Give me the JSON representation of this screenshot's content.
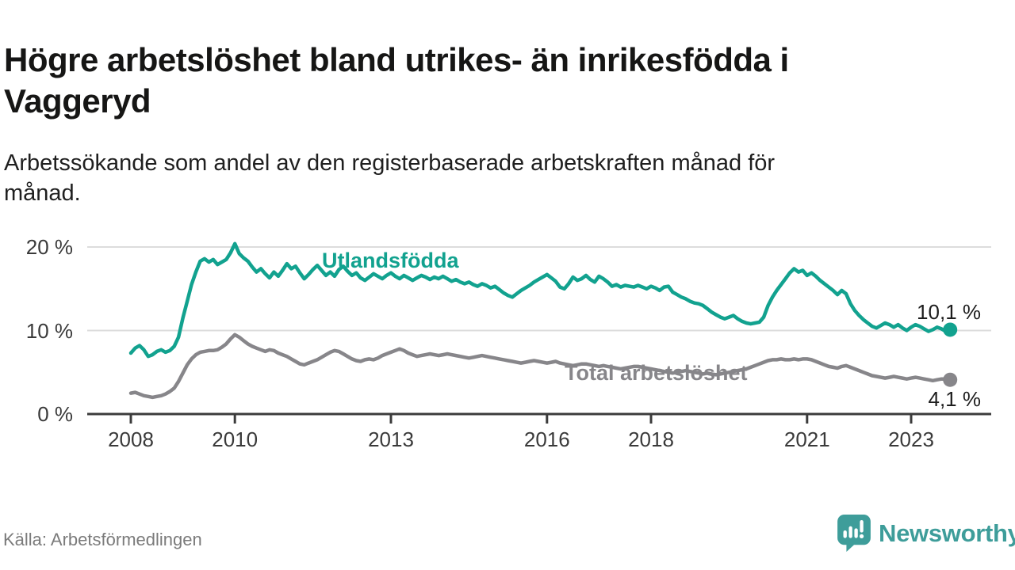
{
  "header": {
    "title": "Högre arbetslöshet bland utrikes- än inrikesfödda i Vaggeryd",
    "subtitle": "Arbetssökande som andel av den registerbaserade arbetskraften månad för månad."
  },
  "footer": {
    "source": "Källa: Arbetsförmedlingen",
    "brand_name": "Newsworthy",
    "brand_color": "#3e9d9a",
    "brand_icon": "newsworthy-speech-bubble-bar-chart-icon"
  },
  "chart_data": {
    "type": "line",
    "unit": "%",
    "x": {
      "start": "2008-01",
      "end": "2023-10",
      "frequency": "monthly"
    },
    "grid": true,
    "grid_color": "#dcdcdc",
    "axis_color": "#3b3b3b",
    "ylim": [
      0,
      21
    ],
    "y_axis": {
      "ticks": [
        {
          "value": 0,
          "label": "0 %"
        },
        {
          "value": 10,
          "label": "10 %"
        },
        {
          "value": 20,
          "label": "20 %"
        }
      ]
    },
    "x_axis": {
      "ticks": [
        {
          "year": 2008,
          "label": "2008"
        },
        {
          "year": 2010,
          "label": "2010"
        },
        {
          "year": 2013,
          "label": "2013"
        },
        {
          "year": 2016,
          "label": "2016"
        },
        {
          "year": 2018,
          "label": "2018"
        },
        {
          "year": 2021,
          "label": "2021"
        },
        {
          "year": 2023,
          "label": "2023"
        }
      ]
    },
    "series": [
      {
        "name": "Utlandsfödda",
        "color": "#12a28f",
        "end_value": 10.1,
        "end_label": "10,1 %",
        "values": [
          7.3,
          7.9,
          8.2,
          7.7,
          6.9,
          7.1,
          7.5,
          7.7,
          7.4,
          7.6,
          8.1,
          9.2,
          11.5,
          13.5,
          15.5,
          17.0,
          18.3,
          18.6,
          18.2,
          18.5,
          17.9,
          18.2,
          18.5,
          19.3,
          20.4,
          19.2,
          18.7,
          18.3,
          17.6,
          17.0,
          17.4,
          16.8,
          16.3,
          17.0,
          16.5,
          17.2,
          18.0,
          17.4,
          17.7,
          16.9,
          16.2,
          16.7,
          17.3,
          17.8,
          17.2,
          16.6,
          17.0,
          16.5,
          17.3,
          17.7,
          17.1,
          16.6,
          16.9,
          16.3,
          16.0,
          16.4,
          16.8,
          16.5,
          16.2,
          16.6,
          16.9,
          16.5,
          16.2,
          16.6,
          16.3,
          16.0,
          16.3,
          16.6,
          16.4,
          16.1,
          16.4,
          16.2,
          16.5,
          16.2,
          15.9,
          16.1,
          15.8,
          15.6,
          15.8,
          15.5,
          15.3,
          15.6,
          15.4,
          15.1,
          15.3,
          14.9,
          14.5,
          14.2,
          14.0,
          14.4,
          14.8,
          15.1,
          15.4,
          15.8,
          16.1,
          16.4,
          16.7,
          16.3,
          15.9,
          15.2,
          15.0,
          15.6,
          16.4,
          16.0,
          16.2,
          16.6,
          16.1,
          15.8,
          16.5,
          16.2,
          15.8,
          15.3,
          15.5,
          15.2,
          15.4,
          15.3,
          15.2,
          15.4,
          15.2,
          15.0,
          15.3,
          15.1,
          14.8,
          15.2,
          15.3,
          14.6,
          14.3,
          14.0,
          13.8,
          13.5,
          13.3,
          13.2,
          13.0,
          12.6,
          12.2,
          11.9,
          11.6,
          11.4,
          11.6,
          11.8,
          11.4,
          11.1,
          10.9,
          10.8,
          10.9,
          11.0,
          11.6,
          13.0,
          14.0,
          14.8,
          15.5,
          16.2,
          16.9,
          17.4,
          17.0,
          17.2,
          16.6,
          16.9,
          16.5,
          16.0,
          15.6,
          15.2,
          14.8,
          14.3,
          14.8,
          14.4,
          13.2,
          12.4,
          11.8,
          11.3,
          10.9,
          10.5,
          10.3,
          10.6,
          10.9,
          10.7,
          10.4,
          10.7,
          10.3,
          10.0,
          10.4,
          10.7,
          10.5,
          10.2,
          9.9,
          10.1,
          10.4,
          10.2,
          9.9,
          10.1
        ]
      },
      {
        "name": "Total arbetslöshet",
        "color": "#87868a",
        "end_value": 4.1,
        "end_label": "4,1 %",
        "values": [
          2.5,
          2.6,
          2.4,
          2.2,
          2.1,
          2.0,
          2.1,
          2.2,
          2.4,
          2.7,
          3.1,
          3.9,
          4.9,
          5.9,
          6.6,
          7.1,
          7.4,
          7.5,
          7.6,
          7.6,
          7.7,
          8.0,
          8.4,
          9.0,
          9.5,
          9.2,
          8.8,
          8.4,
          8.1,
          7.9,
          7.7,
          7.5,
          7.7,
          7.6,
          7.3,
          7.1,
          6.9,
          6.6,
          6.3,
          6.0,
          5.9,
          6.1,
          6.3,
          6.5,
          6.8,
          7.1,
          7.4,
          7.6,
          7.5,
          7.2,
          6.9,
          6.6,
          6.4,
          6.3,
          6.5,
          6.6,
          6.5,
          6.7,
          7.0,
          7.2,
          7.4,
          7.6,
          7.8,
          7.6,
          7.3,
          7.1,
          6.9,
          7.0,
          7.1,
          7.2,
          7.1,
          7.0,
          7.1,
          7.2,
          7.1,
          7.0,
          6.9,
          6.8,
          6.7,
          6.8,
          6.9,
          7.0,
          6.9,
          6.8,
          6.7,
          6.6,
          6.5,
          6.4,
          6.3,
          6.2,
          6.1,
          6.2,
          6.3,
          6.4,
          6.3,
          6.2,
          6.1,
          6.2,
          6.3,
          6.1,
          6.0,
          5.9,
          5.8,
          5.9,
          6.0,
          6.0,
          5.9,
          5.8,
          5.7,
          5.8,
          5.7,
          5.6,
          5.5,
          5.4,
          5.5,
          5.6,
          5.7,
          5.7,
          5.6,
          5.5,
          5.4,
          5.3,
          5.2,
          5.1,
          5.0,
          4.9,
          5.0,
          5.1,
          5.2,
          5.1,
          5.0,
          4.9,
          4.8,
          4.9,
          4.8,
          4.7,
          4.8,
          4.9,
          5.0,
          5.1,
          5.2,
          5.3,
          5.4,
          5.6,
          5.8,
          6.0,
          6.2,
          6.4,
          6.5,
          6.5,
          6.6,
          6.5,
          6.5,
          6.6,
          6.5,
          6.6,
          6.6,
          6.5,
          6.3,
          6.1,
          5.9,
          5.7,
          5.6,
          5.5,
          5.7,
          5.8,
          5.6,
          5.4,
          5.2,
          5.0,
          4.8,
          4.6,
          4.5,
          4.4,
          4.3,
          4.4,
          4.5,
          4.4,
          4.3,
          4.2,
          4.3,
          4.4,
          4.3,
          4.2,
          4.1,
          4.0,
          4.1,
          4.2,
          4.2,
          4.1
        ]
      }
    ]
  }
}
